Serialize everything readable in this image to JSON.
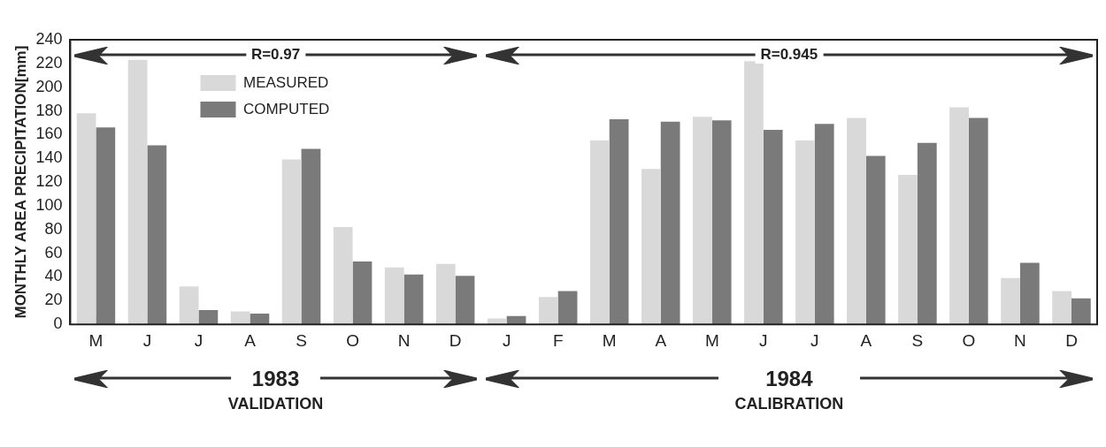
{
  "chart_data": {
    "type": "bar",
    "ylabel": "MONTHLY AREA PRECIPITATION[mm]",
    "categories": [
      "M",
      "J",
      "J",
      "A",
      "S",
      "O",
      "N",
      "D",
      "J",
      "F",
      "M",
      "A",
      "M",
      "J",
      "J",
      "A",
      "S",
      "O",
      "N",
      "D"
    ],
    "series": [
      {
        "name": "MEASURED",
        "color": "#d9d9d9",
        "values": [
          178,
          223,
          32,
          11,
          139,
          82,
          48,
          51,
          5,
          23,
          155,
          131,
          175,
          222,
          155,
          174,
          126,
          183,
          39,
          28
        ]
      },
      {
        "name": "COMPUTED",
        "color": "#7a7a7a",
        "values": [
          166,
          151,
          12,
          9,
          148,
          53,
          42,
          41,
          7,
          28,
          173,
          171,
          172,
          164,
          169,
          142,
          153,
          174,
          52,
          22
        ]
      }
    ],
    "ylim": [
      0,
      240
    ],
    "yticks": [
      0,
      20,
      40,
      60,
      80,
      100,
      120,
      140,
      160,
      180,
      200,
      220,
      240
    ],
    "grid": false,
    "legend": "top",
    "annotations": [
      "R=0.97",
      "R=0.945",
      "1983",
      "1984",
      "VALIDATION",
      "CALIBRATION"
    ]
  }
}
